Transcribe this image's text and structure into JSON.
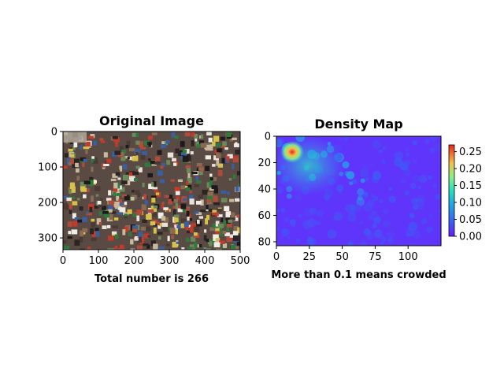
{
  "chart_data": [
    {
      "type": "image",
      "title": "Original Image",
      "xlabel": "Total number is 266",
      "xlim": [
        0,
        500
      ],
      "ylim": [
        0,
        333
      ],
      "y_inverted": true,
      "xticks": [
        0,
        100,
        200,
        300,
        400,
        500
      ],
      "yticks": [
        0,
        100,
        200,
        300
      ],
      "xtick_labels": [
        "0",
        "100",
        "200",
        "300",
        "400",
        "500"
      ],
      "ytick_labels": [
        "0",
        "100",
        "200",
        "300"
      ]
    },
    {
      "type": "heatmap",
      "title": "Density Map",
      "xlabel": "More than 0.1 means crowded",
      "xlim": [
        0,
        125
      ],
      "ylim": [
        0,
        83
      ],
      "y_inverted": true,
      "xticks": [
        0,
        25,
        50,
        75,
        100
      ],
      "yticks": [
        0,
        20,
        40,
        60,
        80
      ],
      "xtick_labels": [
        "0",
        "25",
        "50",
        "75",
        "100"
      ],
      "ytick_labels": [
        "0",
        "20",
        "40",
        "60",
        "80"
      ],
      "colormap": "rainbow",
      "colorbar": {
        "range": [
          0.0,
          0.27
        ],
        "ticks": [
          0.0,
          0.05,
          0.1,
          0.15,
          0.2,
          0.25
        ],
        "tick_labels": [
          "0.00",
          "0.05",
          "0.10",
          "0.15",
          "0.20",
          "0.25"
        ]
      },
      "peak": {
        "x": 12,
        "y": 12,
        "value": 0.27
      }
    }
  ],
  "colors": {
    "cmap_low": "#6a1bff",
    "cmap_mid": "#28e0c0",
    "cmap_high": "#e8261f"
  }
}
